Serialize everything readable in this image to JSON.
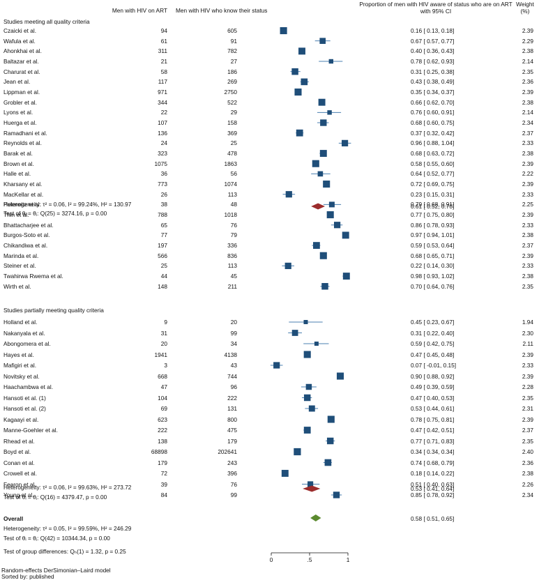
{
  "headers": {
    "art": "Men with HIV on ART",
    "know": "Men with HIV who know their status",
    "prop_line1": "Proportion of men with HIV aware of status who are on ART",
    "prop_line2": "with 95% CI",
    "weight_line1": "Weight",
    "weight_line2": "(%)"
  },
  "colors": {
    "box": "#1f4e79",
    "ci": "#4a7fb0",
    "diamond_sub": "#9b2c2c",
    "diamond_overall": "#5b8a2f"
  },
  "footer": {
    "model": "Random-effects DerSimonian–Laird model",
    "sorted": "Sorted by: published",
    "group_test": "Test of group differences: Qₕ(1) = 1.32, p = 0.25"
  },
  "overall": {
    "label": "Overall",
    "estimate": 0.58,
    "ci": [
      0.51,
      0.65
    ],
    "ci_text": "0.58 [ 0.51,  0.65]",
    "heterogeneity": "Heterogeneity: τ² = 0.05, I² = 99.59%, H² = 246.29",
    "test": "Test of θᵢ = θⱼ: Q(42) = 10344.34, p = 0.00"
  },
  "chart_data": {
    "type": "forest",
    "title": "Proportion of men with HIV aware of status who are on ART with 95% CI",
    "x_range": [
      0,
      1
    ],
    "x_ticks": [
      0,
      0.5,
      1
    ],
    "x_tick_labels": [
      "0",
      ".5",
      "1"
    ],
    "groups": [
      {
        "title": "Studies meeting all quality criteria",
        "heterogeneity": "Heterogeneity: τ² = 0.06, I² = 99.24%, H² = 130.97",
        "test": "Test of θᵢ = θⱼ: Q(25) = 3274.16, p = 0.00",
        "pooled": {
          "estimate": 0.61,
          "ci": [
            0.52,
            0.7
          ],
          "ci_text": "0.61 [ 0.52,  0.70]"
        },
        "studies": [
          {
            "name": "Czaicki et al.",
            "art": "94",
            "know": "605",
            "est": 0.16,
            "lo": 0.13,
            "hi": 0.18,
            "ci": "0.16 [ 0.13,  0.18]",
            "weight": "2.39"
          },
          {
            "name": "Wafula et al.",
            "art": "61",
            "know": "91",
            "est": 0.67,
            "lo": 0.57,
            "hi": 0.77,
            "ci": "0.67 [ 0.57,  0.77]",
            "weight": "2.29"
          },
          {
            "name": "Ahonkhai et al.",
            "art": "311",
            "know": "782",
            "est": 0.4,
            "lo": 0.36,
            "hi": 0.43,
            "ci": "0.40 [ 0.36,  0.43]",
            "weight": "2.38"
          },
          {
            "name": "Baltazar et al.",
            "art": "21",
            "know": "27",
            "est": 0.78,
            "lo": 0.62,
            "hi": 0.93,
            "ci": "0.78 [ 0.62,  0.93]",
            "weight": "2.14"
          },
          {
            "name": "Charurat et al.",
            "art": "58",
            "know": "186",
            "est": 0.31,
            "lo": 0.25,
            "hi": 0.38,
            "ci": "0.31 [ 0.25,  0.38]",
            "weight": "2.35"
          },
          {
            "name": "Jean et al.",
            "art": "117",
            "know": "269",
            "est": 0.43,
            "lo": 0.38,
            "hi": 0.49,
            "ci": "0.43 [ 0.38,  0.49]",
            "weight": "2.36"
          },
          {
            "name": "Lippman et al.",
            "art": "971",
            "know": "2750",
            "est": 0.35,
            "lo": 0.34,
            "hi": 0.37,
            "ci": "0.35 [ 0.34,  0.37]",
            "weight": "2.39"
          },
          {
            "name": "Grobler et al.",
            "art": "344",
            "know": "522",
            "est": 0.66,
            "lo": 0.62,
            "hi": 0.7,
            "ci": "0.66 [ 0.62,  0.70]",
            "weight": "2.38"
          },
          {
            "name": "Lyons et al.",
            "art": "22",
            "know": "29",
            "est": 0.76,
            "lo": 0.6,
            "hi": 0.91,
            "ci": "0.76 [ 0.60,  0.91]",
            "weight": "2.14"
          },
          {
            "name": "Huerga et al.",
            "art": "107",
            "know": "158",
            "est": 0.68,
            "lo": 0.6,
            "hi": 0.75,
            "ci": "0.68 [ 0.60,  0.75]",
            "weight": "2.34"
          },
          {
            "name": "Ramadhani et al.",
            "art": "136",
            "know": "369",
            "est": 0.37,
            "lo": 0.32,
            "hi": 0.42,
            "ci": "0.37 [ 0.32,  0.42]",
            "weight": "2.37"
          },
          {
            "name": "Reynolds et al.",
            "art": "24",
            "know": "25",
            "est": 0.96,
            "lo": 0.88,
            "hi": 1.04,
            "ci": "0.96 [ 0.88,  1.04]",
            "weight": "2.33"
          },
          {
            "name": "Barak et al.",
            "art": "323",
            "know": "478",
            "est": 0.68,
            "lo": 0.63,
            "hi": 0.72,
            "ci": "0.68 [ 0.63,  0.72]",
            "weight": "2.38"
          },
          {
            "name": "Brown et al.",
            "art": "1075",
            "know": "1863",
            "est": 0.58,
            "lo": 0.55,
            "hi": 0.6,
            "ci": "0.58 [ 0.55,  0.60]",
            "weight": "2.39"
          },
          {
            "name": "Halle et al.",
            "art": "36",
            "know": "56",
            "est": 0.64,
            "lo": 0.52,
            "hi": 0.77,
            "ci": "0.64 [ 0.52,  0.77]",
            "weight": "2.22"
          },
          {
            "name": "Kharsany et al.",
            "art": "773",
            "know": "1074",
            "est": 0.72,
            "lo": 0.69,
            "hi": 0.75,
            "ci": "0.72 [ 0.69,  0.75]",
            "weight": "2.39"
          },
          {
            "name": "MacKellar et al.",
            "art": "26",
            "know": "113",
            "est": 0.23,
            "lo": 0.15,
            "hi": 0.31,
            "ci": "0.23 [ 0.15,  0.31]",
            "weight": "2.33"
          },
          {
            "name": "Pulerwitz et al.",
            "art": "38",
            "know": "48",
            "est": 0.79,
            "lo": 0.68,
            "hi": 0.91,
            "ci": "0.79 [ 0.68,  0.91]",
            "weight": "2.25"
          },
          {
            "name": "Thin et al.",
            "art": "788",
            "know": "1018",
            "est": 0.77,
            "lo": 0.75,
            "hi": 0.8,
            "ci": "0.77 [ 0.75,  0.80]",
            "weight": "2.39"
          },
          {
            "name": "Bhattacharjee et al.",
            "art": "65",
            "know": "76",
            "est": 0.86,
            "lo": 0.78,
            "hi": 0.93,
            "ci": "0.86 [ 0.78,  0.93]",
            "weight": "2.33"
          },
          {
            "name": "Burgos-Soto et al.",
            "art": "77",
            "know": "79",
            "est": 0.97,
            "lo": 0.94,
            "hi": 1.01,
            "ci": "0.97 [ 0.94,  1.01]",
            "weight": "2.38"
          },
          {
            "name": "Chikandiwa et al.",
            "art": "197",
            "know": "336",
            "est": 0.59,
            "lo": 0.53,
            "hi": 0.64,
            "ci": "0.59 [ 0.53,  0.64]",
            "weight": "2.37"
          },
          {
            "name": "Marinda et al.",
            "art": "566",
            "know": "836",
            "est": 0.68,
            "lo": 0.65,
            "hi": 0.71,
            "ci": "0.68 [ 0.65,  0.71]",
            "weight": "2.39"
          },
          {
            "name": "Steiner et al.",
            "art": "25",
            "know": "113",
            "est": 0.22,
            "lo": 0.14,
            "hi": 0.3,
            "ci": "0.22 [ 0.14,  0.30]",
            "weight": "2.33"
          },
          {
            "name": "Twahirwa Rwema et al.",
            "art": "44",
            "know": "45",
            "est": 0.98,
            "lo": 0.93,
            "hi": 1.02,
            "ci": "0.98 [ 0.93,  1.02]",
            "weight": "2.38"
          },
          {
            "name": "Wirth et al.",
            "art": "148",
            "know": "211",
            "est": 0.7,
            "lo": 0.64,
            "hi": 0.76,
            "ci": "0.70 [ 0.64,  0.76]",
            "weight": "2.35"
          }
        ]
      },
      {
        "title": "Studies partially meeting quality criteria",
        "heterogeneity": "Heterogeneity: τ² = 0.06, I² = 99.63%, H² = 273.72",
        "test": "Test of θᵢ = θⱼ: Q(16) = 4379.47, p = 0.00",
        "pooled": {
          "estimate": 0.53,
          "ci": [
            0.41,
            0.64
          ],
          "ci_text": "0.53 [ 0.41,  0.64]"
        },
        "studies": [
          {
            "name": "Holland et al.",
            "art": "9",
            "know": "20",
            "est": 0.45,
            "lo": 0.23,
            "hi": 0.67,
            "ci": "0.45 [ 0.23,  0.67]",
            "weight": "1.94"
          },
          {
            "name": "Nakanyala et al.",
            "art": "31",
            "know": "99",
            "est": 0.31,
            "lo": 0.22,
            "hi": 0.4,
            "ci": "0.31 [ 0.22,  0.40]",
            "weight": "2.30"
          },
          {
            "name": "Abongomera et al.",
            "art": "20",
            "know": "34",
            "est": 0.59,
            "lo": 0.42,
            "hi": 0.75,
            "ci": "0.59 [ 0.42,  0.75]",
            "weight": "2.11"
          },
          {
            "name": "Hayes et al.",
            "art": "1941",
            "know": "4138",
            "est": 0.47,
            "lo": 0.45,
            "hi": 0.48,
            "ci": "0.47 [ 0.45,  0.48]",
            "weight": "2.39"
          },
          {
            "name": "Mafigiri et al.",
            "art": "3",
            "know": "43",
            "est": 0.07,
            "lo": -0.01,
            "hi": 0.15,
            "ci": "0.07 [ -0.01,  0.15]",
            "weight": "2.33"
          },
          {
            "name": "Novitsky et al.",
            "art": "668",
            "know": "744",
            "est": 0.9,
            "lo": 0.88,
            "hi": 0.92,
            "ci": "0.90 [ 0.88,  0.92]",
            "weight": "2.39"
          },
          {
            "name": "Haachambwa et al.",
            "art": "47",
            "know": "96",
            "est": 0.49,
            "lo": 0.39,
            "hi": 0.59,
            "ci": "0.49 [ 0.39,  0.59]",
            "weight": "2.28"
          },
          {
            "name": "Hansoti et al. (1)",
            "art": "104",
            "know": "222",
            "est": 0.47,
            "lo": 0.4,
            "hi": 0.53,
            "ci": "0.47 [ 0.40,  0.53]",
            "weight": "2.35"
          },
          {
            "name": "Hansoti et al. (2)",
            "art": "69",
            "know": "131",
            "est": 0.53,
            "lo": 0.44,
            "hi": 0.61,
            "ci": "0.53 [ 0.44,  0.61]",
            "weight": "2.31"
          },
          {
            "name": "Kagaayi et al.",
            "art": "623",
            "know": "800",
            "est": 0.78,
            "lo": 0.75,
            "hi": 0.81,
            "ci": "0.78 [ 0.75,  0.81]",
            "weight": "2.39"
          },
          {
            "name": "Manne-Goehler et al.",
            "art": "222",
            "know": "475",
            "est": 0.47,
            "lo": 0.42,
            "hi": 0.51,
            "ci": "0.47 [ 0.42,  0.51]",
            "weight": "2.37"
          },
          {
            "name": "Rhead et al.",
            "art": "138",
            "know": "179",
            "est": 0.77,
            "lo": 0.71,
            "hi": 0.83,
            "ci": "0.77 [ 0.71,  0.83]",
            "weight": "2.35"
          },
          {
            "name": "Boyd et al.",
            "art": "68898",
            "know": "202641",
            "est": 0.34,
            "lo": 0.34,
            "hi": 0.34,
            "ci": "0.34 [ 0.34,  0.34]",
            "weight": "2.40"
          },
          {
            "name": "Conan et al.",
            "art": "179",
            "know": "243",
            "est": 0.74,
            "lo": 0.68,
            "hi": 0.79,
            "ci": "0.74 [ 0.68,  0.79]",
            "weight": "2.36"
          },
          {
            "name": "Crowell et al.",
            "art": "72",
            "know": "396",
            "est": 0.18,
            "lo": 0.14,
            "hi": 0.22,
            "ci": "0.18 [ 0.14,  0.22]",
            "weight": "2.38"
          },
          {
            "name": "Fearon et al.",
            "art": "39",
            "know": "76",
            "est": 0.51,
            "lo": 0.4,
            "hi": 0.63,
            "ci": "0.51 [ 0.40,  0.63]",
            "weight": "2.26"
          },
          {
            "name": "Young et al.",
            "art": "84",
            "know": "99",
            "est": 0.85,
            "lo": 0.78,
            "hi": 0.92,
            "ci": "0.85 [ 0.78,  0.92]",
            "weight": "2.34"
          }
        ]
      }
    ]
  }
}
